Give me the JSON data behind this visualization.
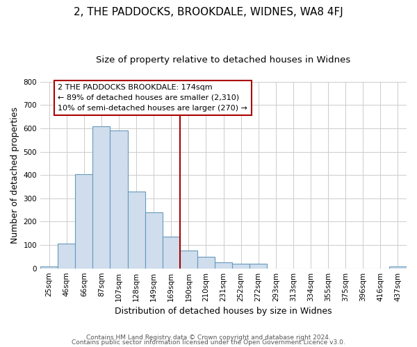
{
  "title": "2, THE PADDOCKS, BROOKDALE, WIDNES, WA8 4FJ",
  "subtitle": "Size of property relative to detached houses in Widnes",
  "xlabel": "Distribution of detached houses by size in Widnes",
  "ylabel": "Number of detached properties",
  "bar_labels": [
    "25sqm",
    "46sqm",
    "66sqm",
    "87sqm",
    "107sqm",
    "128sqm",
    "149sqm",
    "169sqm",
    "190sqm",
    "210sqm",
    "231sqm",
    "252sqm",
    "272sqm",
    "293sqm",
    "313sqm",
    "334sqm",
    "355sqm",
    "375sqm",
    "396sqm",
    "416sqm",
    "437sqm"
  ],
  "bar_values": [
    8,
    105,
    405,
    610,
    590,
    330,
    240,
    135,
    75,
    50,
    25,
    20,
    20,
    0,
    0,
    0,
    0,
    0,
    0,
    0,
    8
  ],
  "bar_color": "#cfdded",
  "bar_edge_color": "#6699bb",
  "vline_x": 7.5,
  "vline_color": "#aa0000",
  "annotation_text": "2 THE PADDOCKS BROOKDALE: 174sqm\n← 89% of detached houses are smaller (2,310)\n10% of semi-detached houses are larger (270) →",
  "annotation_box_facecolor": "#ffffff",
  "annotation_box_edgecolor": "#aa0000",
  "ylim": [
    0,
    800
  ],
  "yticks": [
    0,
    100,
    200,
    300,
    400,
    500,
    600,
    700,
    800
  ],
  "footer1": "Contains HM Land Registry data © Crown copyright and database right 2024.",
  "footer2": "Contains public sector information licensed under the Open Government Licence v3.0.",
  "title_fontsize": 11,
  "subtitle_fontsize": 9.5,
  "axis_label_fontsize": 9,
  "tick_fontsize": 7.5,
  "annotation_fontsize": 8,
  "footer_fontsize": 6.5,
  "background_color": "#ffffff",
  "grid_color": "#cccccc"
}
